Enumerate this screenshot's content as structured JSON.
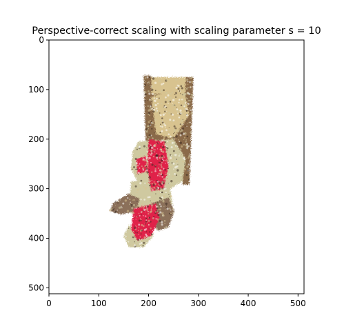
{
  "chart_data": {
    "type": "image",
    "title": "Perspective-correct scaling with scaling parameter s = 10",
    "xlabel": "",
    "ylabel": "",
    "xlim": [
      0,
      512
    ],
    "ylim": [
      512,
      0
    ],
    "y_inverted": true,
    "x_ticks": [
      0,
      100,
      200,
      300,
      400,
      500
    ],
    "x_tick_labels": [
      "0",
      "100",
      "200",
      "300",
      "400",
      "500"
    ],
    "y_ticks": [
      0,
      100,
      200,
      300,
      400,
      500
    ],
    "y_tick_labels": [
      "0",
      "100",
      "200",
      "300",
      "400",
      "500"
    ],
    "grid": false,
    "legend": "none",
    "image_subject": "point-splat render of a teddy bear toy held by a wooden holder",
    "colors": {
      "wood_light": "#d8c38f",
      "wood_dark": "#8a6a48",
      "fur_beige": "#cfc9a0",
      "fur_brown": "#8b705a",
      "red_accent": "#e0204a",
      "dark_detail": "#3a2a20"
    },
    "regions": [
      {
        "name": "holder-top-bar",
        "color": "wood_light",
        "points": [
          [
            195,
            75
          ],
          [
            290,
            75
          ],
          [
            288,
            110
          ],
          [
            200,
            112
          ]
        ]
      },
      {
        "name": "holder-left-post",
        "color": "wood_dark",
        "points": [
          [
            190,
            72
          ],
          [
            205,
            72
          ],
          [
            210,
            230
          ],
          [
            195,
            230
          ]
        ]
      },
      {
        "name": "holder-right-post",
        "color": "wood_dark",
        "points": [
          [
            275,
            75
          ],
          [
            290,
            75
          ],
          [
            282,
            292
          ],
          [
            268,
            292
          ]
        ]
      },
      {
        "name": "holder-body",
        "color": "wood_dark",
        "points": [
          [
            200,
            110
          ],
          [
            285,
            105
          ],
          [
            280,
            220
          ],
          [
            255,
            260
          ],
          [
            215,
            230
          ],
          [
            195,
            180
          ]
        ]
      },
      {
        "name": "holder-straps",
        "color": "wood_light",
        "points": [
          [
            205,
            115
          ],
          [
            270,
            95
          ],
          [
            282,
            150
          ],
          [
            250,
            200
          ],
          [
            215,
            190
          ]
        ]
      },
      {
        "name": "bear-head",
        "color": "fur_beige",
        "points": [
          [
            180,
            205
          ],
          [
            250,
            200
          ],
          [
            275,
            240
          ],
          [
            268,
            285
          ],
          [
            235,
            305
          ],
          [
            185,
            300
          ],
          [
            165,
            260
          ],
          [
            168,
            225
          ]
        ]
      },
      {
        "name": "bear-torso",
        "color": "fur_beige",
        "points": [
          [
            165,
            285
          ],
          [
            240,
            280
          ],
          [
            248,
            330
          ],
          [
            225,
            365
          ],
          [
            190,
            370
          ],
          [
            160,
            345
          ]
        ]
      },
      {
        "name": "bear-left-arm",
        "color": "fur_brown",
        "points": [
          [
            128,
            330
          ],
          [
            160,
            310
          ],
          [
            182,
            320
          ],
          [
            175,
            345
          ],
          [
            145,
            352
          ],
          [
            122,
            345
          ]
        ]
      },
      {
        "name": "bear-right-arm",
        "color": "fur_brown",
        "points": [
          [
            205,
            330
          ],
          [
            240,
            318
          ],
          [
            252,
            345
          ],
          [
            240,
            378
          ],
          [
            218,
            385
          ],
          [
            205,
            360
          ]
        ]
      },
      {
        "name": "bear-lower-body",
        "color": "fur_beige",
        "points": [
          [
            160,
            375
          ],
          [
            200,
            370
          ],
          [
            210,
            395
          ],
          [
            190,
            418
          ],
          [
            160,
            418
          ],
          [
            150,
            395
          ]
        ]
      },
      {
        "name": "red-ribbon-upper",
        "color": "red_accent",
        "points": [
          [
            200,
            200
          ],
          [
            232,
            205
          ],
          [
            240,
            255
          ],
          [
            230,
            300
          ],
          [
            205,
            305
          ],
          [
            198,
            260
          ]
        ]
      },
      {
        "name": "red-ribbon-lower",
        "color": "red_accent",
        "points": [
          [
            170,
            340
          ],
          [
            215,
            330
          ],
          [
            222,
            360
          ],
          [
            205,
            395
          ],
          [
            178,
            405
          ],
          [
            165,
            380
          ]
        ]
      },
      {
        "name": "red-spot-left",
        "color": "red_accent",
        "points": [
          [
            175,
            240
          ],
          [
            195,
            235
          ],
          [
            198,
            265
          ],
          [
            178,
            270
          ]
        ]
      }
    ]
  }
}
